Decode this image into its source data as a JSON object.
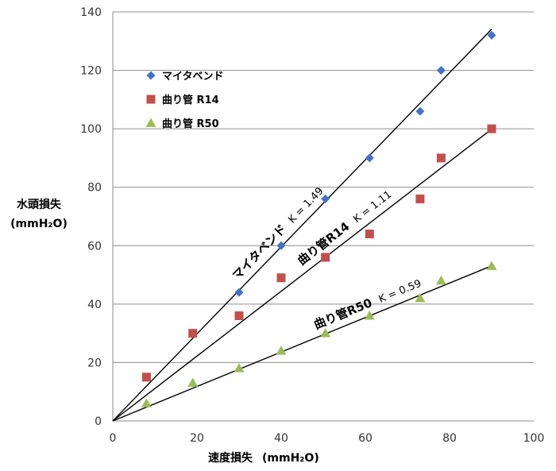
{
  "chart_data": {
    "type": "scatter",
    "xlabel_main": "速度損失",
    "xlabel_unit": "(mmH₂O)",
    "ylabel_line1": "水頭損失",
    "ylabel_line2": "(mmH₂O)",
    "xlim": [
      0,
      100
    ],
    "ylim": [
      0,
      140
    ],
    "xticks": [
      "0",
      "20",
      "40",
      "60",
      "80",
      "100"
    ],
    "yticks": [
      "0",
      "20",
      "40",
      "60",
      "80",
      "100",
      "120",
      "140"
    ],
    "grid": "horizontal",
    "legend_position": "upper-left",
    "series": [
      {
        "name": "マイタベンド",
        "marker": "diamond",
        "color": "#4472C4",
        "x": [
          30,
          40,
          50.5,
          61,
          73,
          78,
          90
        ],
        "y": [
          44,
          60,
          76,
          90,
          106,
          120,
          132
        ],
        "fit": {
          "k": 1.49,
          "x_end": 90,
          "label_name": "マイタベンド",
          "label_k": "K = 1.49"
        }
      },
      {
        "name": "曲り管 R14",
        "marker": "square",
        "color": "#C0504D",
        "x": [
          8,
          19,
          30,
          40,
          50.5,
          61,
          73,
          78,
          90
        ],
        "y": [
          15,
          30,
          36,
          49,
          56,
          64,
          76,
          90,
          100
        ],
        "fit": {
          "k": 1.11,
          "x_end": 90,
          "label_name": "曲り管R14",
          "label_k": "K = 1.11"
        }
      },
      {
        "name": "曲り管 R50",
        "marker": "triangle",
        "color": "#9BBB59",
        "x": [
          8,
          19,
          30,
          40,
          50.5,
          61,
          73,
          78,
          90
        ],
        "y": [
          6,
          13,
          18,
          24,
          30,
          36,
          42,
          48,
          53
        ],
        "fit": {
          "k": 0.59,
          "x_end": 90,
          "label_name": "曲り管R50",
          "label_k": "K = 0.59"
        }
      }
    ]
  }
}
